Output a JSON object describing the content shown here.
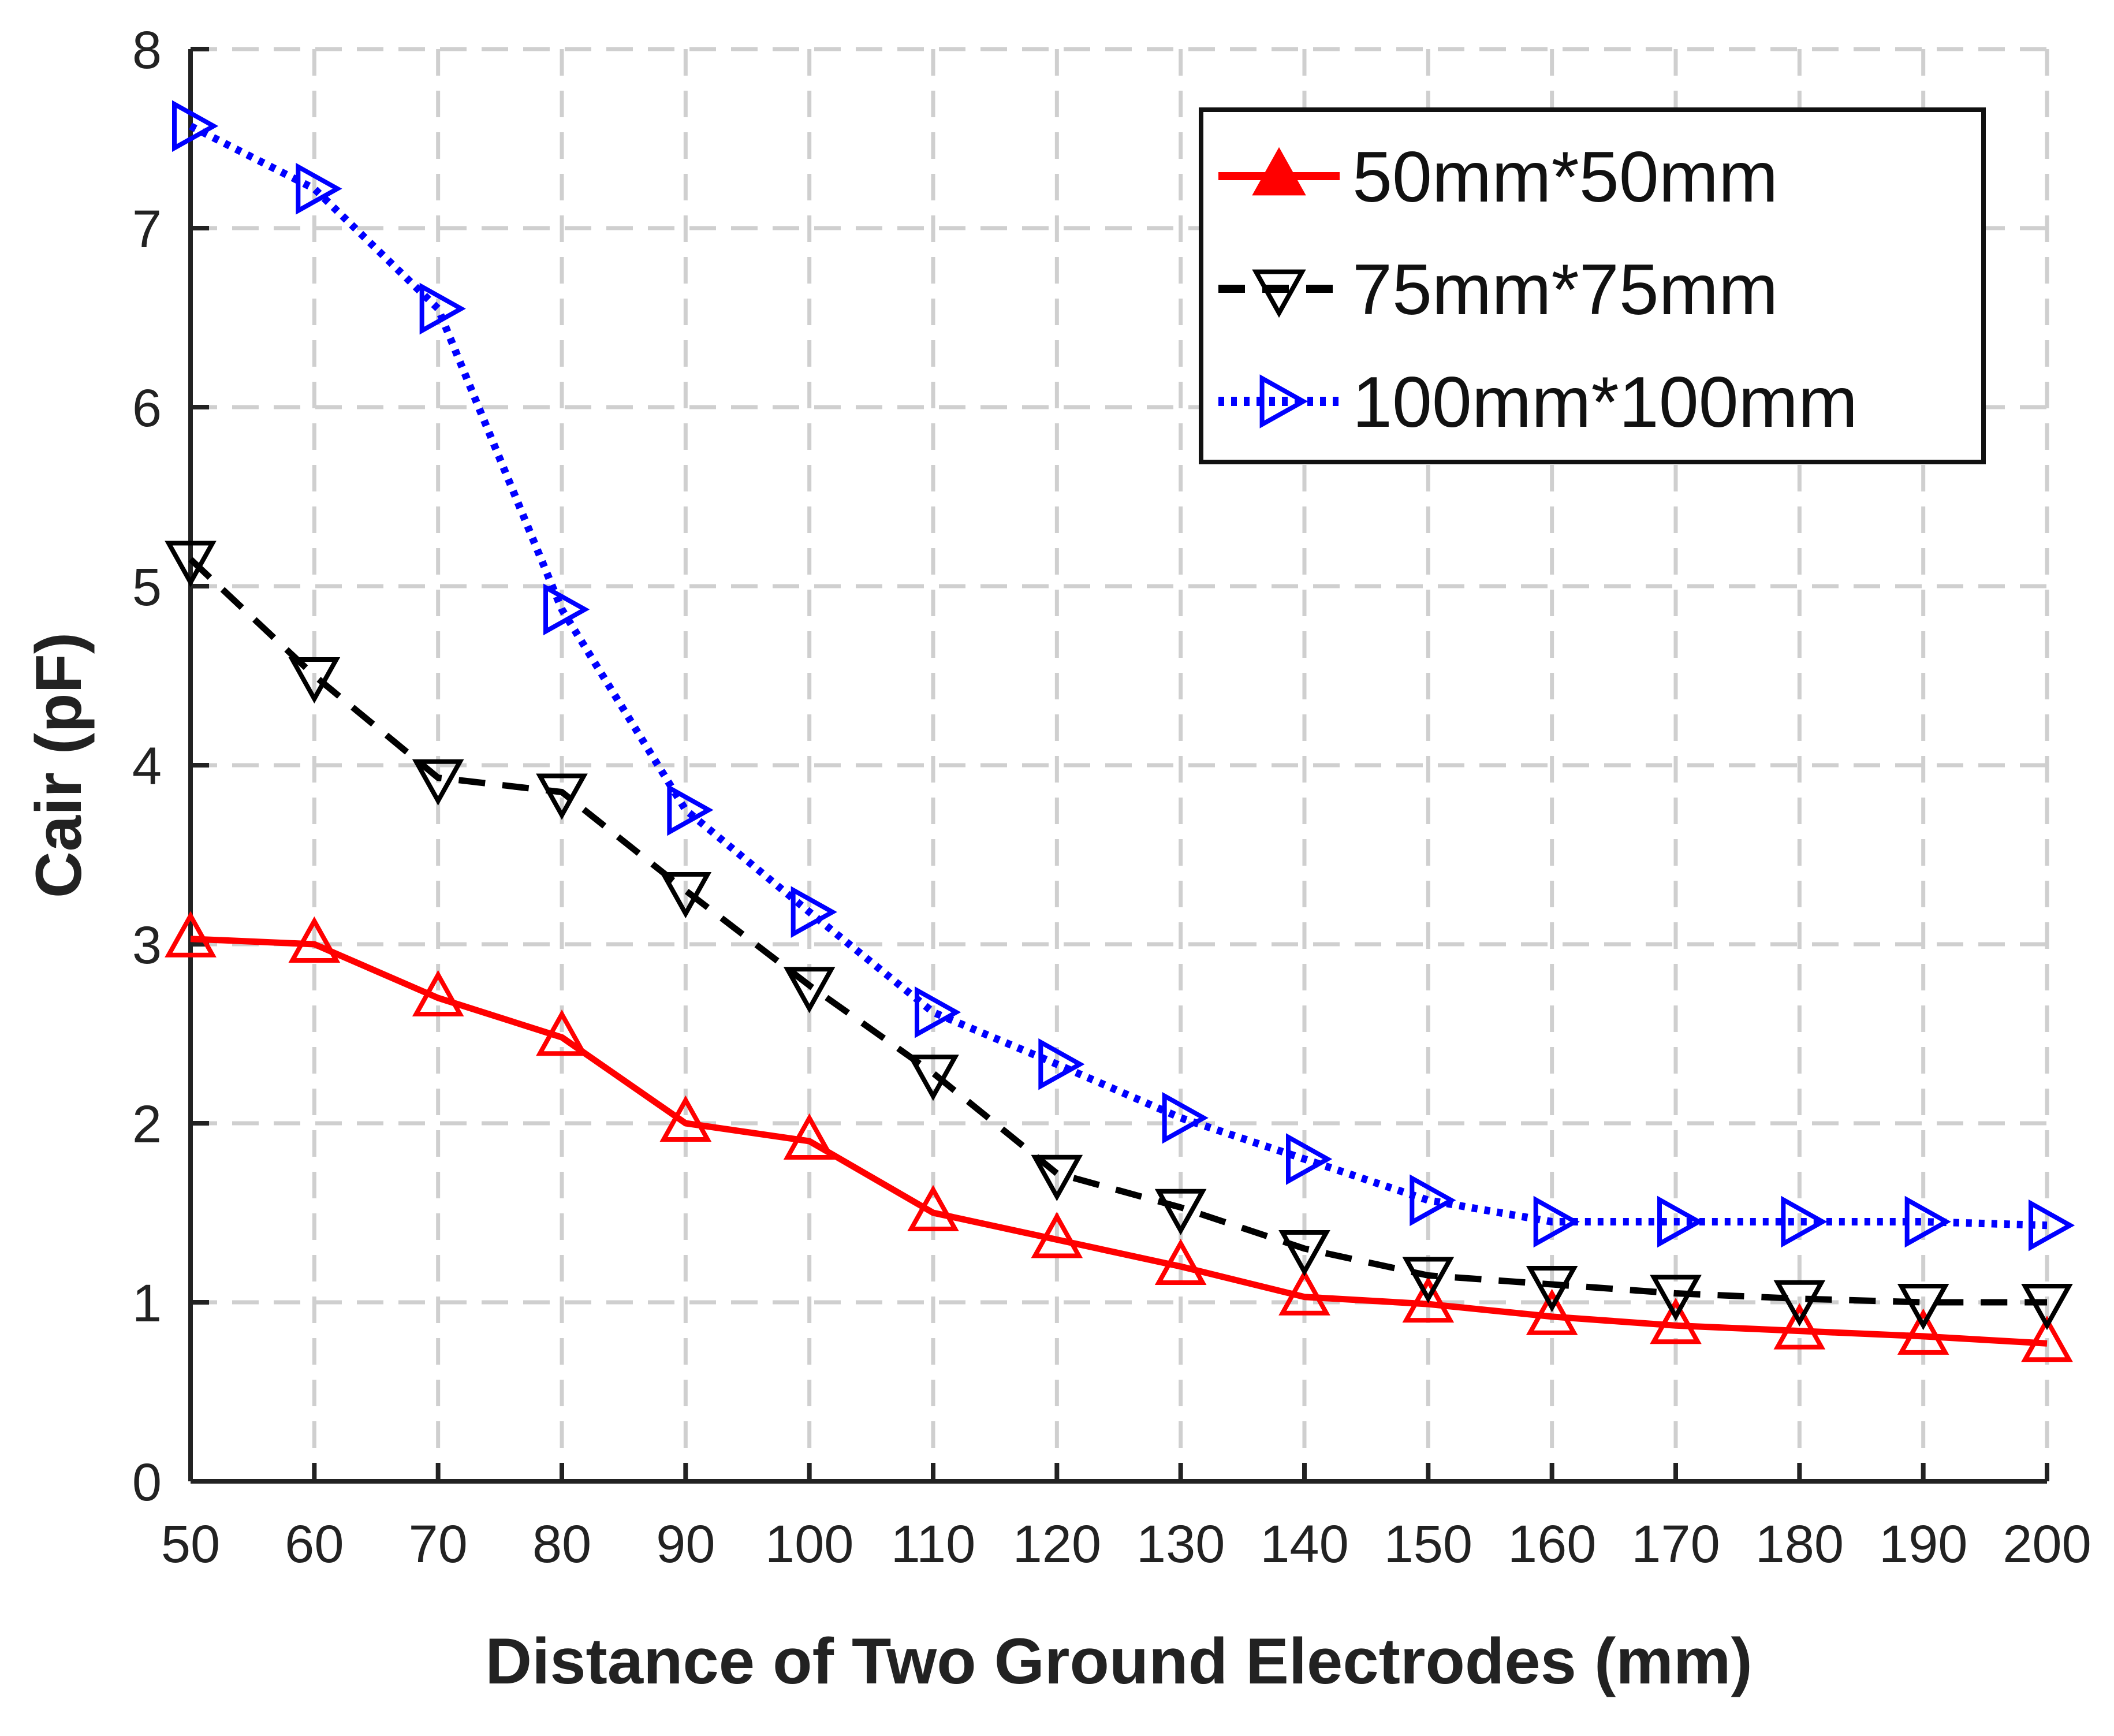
{
  "chart_data": {
    "type": "line",
    "title": "",
    "xlabel": "Distance of Two Ground Electrodes (mm)",
    "ylabel": "Cair (pF)",
    "x": [
      50,
      60,
      70,
      80,
      90,
      100,
      110,
      120,
      130,
      140,
      150,
      160,
      170,
      180,
      190,
      200
    ],
    "xticks": [
      "50",
      "60",
      "70",
      "80",
      "90",
      "100",
      "110",
      "120",
      "130",
      "140",
      "150",
      "160",
      "170",
      "180",
      "190",
      "200"
    ],
    "yticks": [
      "0",
      "1",
      "2",
      "3",
      "4",
      "5",
      "6",
      "7",
      "8"
    ],
    "xlim": [
      50,
      200
    ],
    "ylim": [
      0,
      8
    ],
    "grid": true,
    "legend_position": "top-right",
    "series": [
      {
        "name": "50mm*50mm",
        "color": "#ff0000",
        "line_style": "solid",
        "marker": "triangle-up",
        "values": [
          3.03,
          3.0,
          2.7,
          2.48,
          2.0,
          1.9,
          1.5,
          1.35,
          1.2,
          1.03,
          0.99,
          0.92,
          0.87,
          0.84,
          0.81,
          0.77
        ]
      },
      {
        "name": "75mm*75mm",
        "color": "#000000",
        "line_style": "dashed",
        "marker": "triangle-down",
        "values": [
          5.15,
          4.5,
          3.93,
          3.85,
          3.3,
          2.77,
          2.28,
          1.72,
          1.53,
          1.3,
          1.15,
          1.1,
          1.05,
          1.02,
          1.0,
          1.0
        ]
      },
      {
        "name": "100mm*100mm",
        "color": "#0000ff",
        "line_style": "dotted",
        "marker": "triangle-right",
        "values": [
          7.57,
          7.22,
          6.55,
          4.87,
          3.75,
          3.18,
          2.62,
          2.33,
          2.03,
          1.8,
          1.57,
          1.45,
          1.45,
          1.45,
          1.45,
          1.43
        ]
      }
    ]
  }
}
